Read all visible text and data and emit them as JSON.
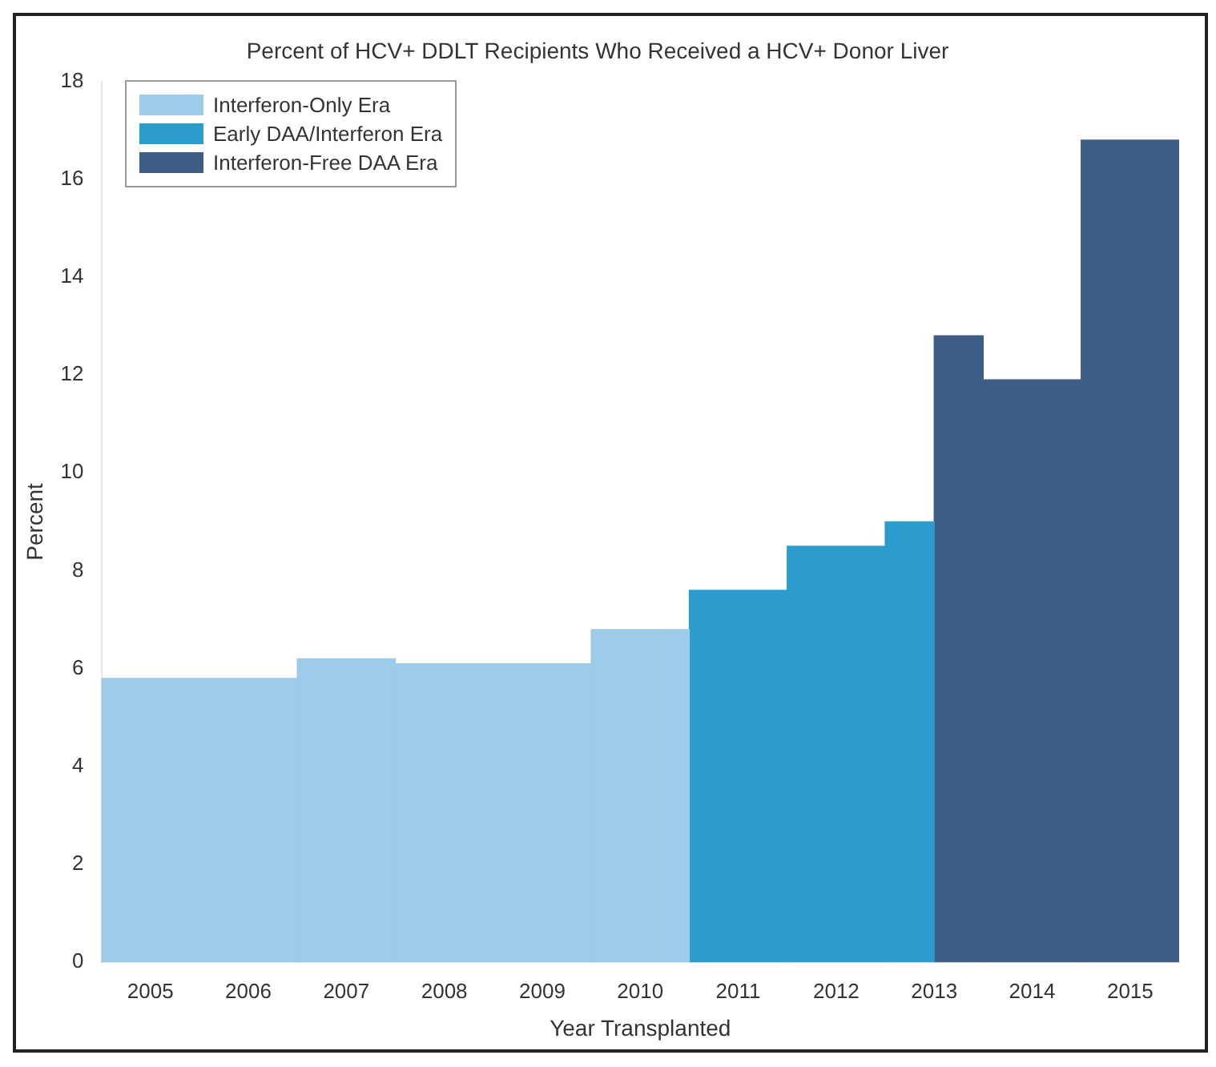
{
  "chart_data": {
    "type": "bar",
    "title": "Percent of HCV+ DDLT Recipients Who Received a HCV+ Donor Liver",
    "xlabel": "Year Transplanted",
    "ylabel": "Percent",
    "categories": [
      "2005",
      "2006",
      "2007",
      "2008",
      "2009",
      "2010",
      "2011",
      "2012",
      "2013",
      "2014",
      "2015"
    ],
    "series": [
      {
        "name": "Interferon-Only Era",
        "color": "#9dcbea",
        "values": [
          5.8,
          5.8,
          6.2,
          6.1,
          6.1,
          6.8,
          null,
          null,
          null,
          null,
          null
        ]
      },
      {
        "name": "Early DAA/Interferon Era",
        "color": "#2b9ccc",
        "values": [
          null,
          null,
          null,
          null,
          null,
          null,
          7.6,
          8.5,
          9.0,
          null,
          null
        ]
      },
      {
        "name": "Interferon-Free DAA Era",
        "color": "#3d5f86",
        "values": [
          null,
          null,
          null,
          null,
          null,
          null,
          null,
          null,
          12.8,
          11.9,
          16.8
        ]
      }
    ],
    "ylim": [
      0,
      18
    ],
    "yticks": [
      0,
      2,
      4,
      6,
      8,
      10,
      12,
      14,
      16,
      18
    ],
    "grid": false,
    "legend": "top left"
  }
}
